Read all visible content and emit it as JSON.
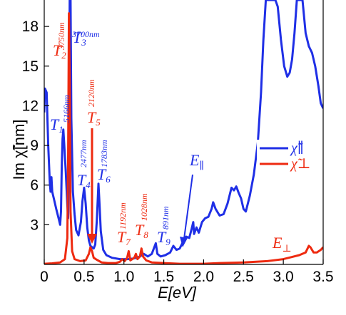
{
  "chart_data": {
    "type": "line",
    "xlabel": "E[eV]",
    "ylabel": "Im χ̃[nm]",
    "xlim": [
      0,
      3.5
    ],
    "ylim": [
      0,
      20
    ],
    "xticks": [
      {
        "v": 0,
        "label": "0"
      },
      {
        "v": 0.5,
        "label": "0.5"
      },
      {
        "v": 1,
        "label": "1.0"
      },
      {
        "v": 1.5,
        "label": "1.5"
      },
      {
        "v": 2,
        "label": "2.0"
      },
      {
        "v": 2.5,
        "label": "2.5"
      },
      {
        "v": 3,
        "label": "3.0"
      },
      {
        "v": 3.5,
        "label": "3.5"
      }
    ],
    "yticks": [
      {
        "v": 3,
        "label": "3"
      },
      {
        "v": 6,
        "label": "6"
      },
      {
        "v": 9,
        "label": "9"
      },
      {
        "v": 12,
        "label": "12"
      },
      {
        "v": 15,
        "label": "15"
      },
      {
        "v": 18,
        "label": "18"
      }
    ],
    "grid": false,
    "legend_position": "right",
    "series": [
      {
        "name": "χ̃∥",
        "color": "#1f2fe6",
        "points": [
          [
            0.0,
            11.5
          ],
          [
            0.01,
            13.3
          ],
          [
            0.03,
            13.0
          ],
          [
            0.05,
            9.0
          ],
          [
            0.07,
            6.2
          ],
          [
            0.08,
            5.5
          ],
          [
            0.09,
            6.6
          ],
          [
            0.1,
            5.5
          ],
          [
            0.12,
            5.0
          ],
          [
            0.15,
            4.2
          ],
          [
            0.18,
            3.5
          ],
          [
            0.2,
            3.0
          ],
          [
            0.21,
            4.0
          ],
          [
            0.22,
            7.5
          ],
          [
            0.23,
            9.5
          ],
          [
            0.24,
            10.2
          ],
          [
            0.25,
            9.2
          ],
          [
            0.27,
            7.0
          ],
          [
            0.29,
            4.5
          ],
          [
            0.3,
            3.5
          ],
          [
            0.31,
            8.0
          ],
          [
            0.32,
            20
          ],
          [
            0.33,
            20
          ],
          [
            0.34,
            11.0
          ],
          [
            0.36,
            5.5
          ],
          [
            0.38,
            3.8
          ],
          [
            0.4,
            2.6
          ],
          [
            0.43,
            2.2
          ],
          [
            0.46,
            3.2
          ],
          [
            0.48,
            4.8
          ],
          [
            0.5,
            5.8
          ],
          [
            0.52,
            4.6
          ],
          [
            0.54,
            2.8
          ],
          [
            0.56,
            1.8
          ],
          [
            0.58,
            1.4
          ],
          [
            0.6,
            1.3
          ],
          [
            0.62,
            1.2
          ],
          [
            0.64,
            1.5
          ],
          [
            0.66,
            3.3
          ],
          [
            0.68,
            6.1
          ],
          [
            0.69,
            5.0
          ],
          [
            0.71,
            2.5
          ],
          [
            0.74,
            1.1
          ],
          [
            0.78,
            0.7
          ],
          [
            0.85,
            0.5
          ],
          [
            0.95,
            0.4
          ],
          [
            1.05,
            0.4
          ],
          [
            1.12,
            0.45
          ],
          [
            1.16,
            0.5
          ],
          [
            1.2,
            0.6
          ],
          [
            1.25,
            0.8
          ],
          [
            1.3,
            0.6
          ],
          [
            1.35,
            0.8
          ],
          [
            1.4,
            1.6
          ],
          [
            1.42,
            0.8
          ],
          [
            1.46,
            0.6
          ],
          [
            1.52,
            0.7
          ],
          [
            1.58,
            0.9
          ],
          [
            1.62,
            1.4
          ],
          [
            1.66,
            1.1
          ],
          [
            1.7,
            1.2
          ],
          [
            1.74,
            1.7
          ],
          [
            1.78,
            2.1
          ],
          [
            1.82,
            2.0
          ],
          [
            1.85,
            2.7
          ],
          [
            1.87,
            3.2
          ],
          [
            1.88,
            2.3
          ],
          [
            1.91,
            2.8
          ],
          [
            1.94,
            2.4
          ],
          [
            1.98,
            3.2
          ],
          [
            2.02,
            3.5
          ],
          [
            2.06,
            3.6
          ],
          [
            2.1,
            4.2
          ],
          [
            2.12,
            4.7
          ],
          [
            2.15,
            4.2
          ],
          [
            2.2,
            3.7
          ],
          [
            2.25,
            3.8
          ],
          [
            2.3,
            4.6
          ],
          [
            2.35,
            5.8
          ],
          [
            2.38,
            5.6
          ],
          [
            2.41,
            5.9
          ],
          [
            2.44,
            5.4
          ],
          [
            2.47,
            5.0
          ],
          [
            2.5,
            4.2
          ],
          [
            2.53,
            4.0
          ],
          [
            2.58,
            5.2
          ],
          [
            2.63,
            6.8
          ],
          [
            2.68,
            9.2
          ],
          [
            2.72,
            13.0
          ],
          [
            2.75,
            17.0
          ],
          [
            2.78,
            20
          ],
          [
            2.9,
            20
          ],
          [
            2.93,
            19.5
          ],
          [
            2.97,
            17.0
          ],
          [
            3.01,
            15.0
          ],
          [
            3.05,
            14.2
          ],
          [
            3.08,
            14.5
          ],
          [
            3.11,
            15.5
          ],
          [
            3.14,
            17.5
          ],
          [
            3.17,
            20
          ],
          [
            3.24,
            20
          ],
          [
            3.28,
            17.5
          ],
          [
            3.32,
            16.5
          ],
          [
            3.36,
            16.0
          ],
          [
            3.4,
            15.0
          ],
          [
            3.44,
            13.5
          ],
          [
            3.47,
            12.2
          ],
          [
            3.5,
            11.8
          ]
        ]
      },
      {
        "name": "χ̃⊥",
        "color": "#ee2a10",
        "points": [
          [
            0.0,
            0.05
          ],
          [
            0.1,
            0.08
          ],
          [
            0.2,
            0.15
          ],
          [
            0.26,
            0.4
          ],
          [
            0.29,
            2.0
          ],
          [
            0.3,
            8.0
          ],
          [
            0.31,
            19.0
          ],
          [
            0.32,
            14.0
          ],
          [
            0.33,
            4.0
          ],
          [
            0.35,
            1.0
          ],
          [
            0.38,
            0.4
          ],
          [
            0.45,
            0.25
          ],
          [
            0.52,
            0.3
          ],
          [
            0.56,
            0.8
          ],
          [
            0.58,
            1.3
          ],
          [
            0.6,
            1.0
          ],
          [
            0.62,
            0.5
          ],
          [
            0.66,
            0.35
          ],
          [
            0.72,
            0.15
          ],
          [
            0.8,
            0.1
          ],
          [
            0.9,
            0.1
          ],
          [
            0.95,
            0.2
          ],
          [
            0.98,
            0.4
          ],
          [
            1.01,
            0.25
          ],
          [
            1.04,
            0.5
          ],
          [
            1.06,
            1.0
          ],
          [
            1.08,
            0.3
          ],
          [
            1.13,
            0.5
          ],
          [
            1.15,
            0.8
          ],
          [
            1.17,
            0.4
          ],
          [
            1.2,
            0.6
          ],
          [
            1.22,
            1.2
          ],
          [
            1.24,
            0.6
          ],
          [
            1.28,
            0.3
          ],
          [
            1.35,
            0.15
          ],
          [
            1.5,
            0.1
          ],
          [
            1.7,
            0.05
          ],
          [
            2.0,
            0.05
          ],
          [
            2.2,
            0.1
          ],
          [
            2.5,
            0.15
          ],
          [
            2.8,
            0.25
          ],
          [
            3.0,
            0.4
          ],
          [
            3.1,
            0.55
          ],
          [
            3.2,
            0.7
          ],
          [
            3.28,
            0.9
          ],
          [
            3.32,
            1.4
          ],
          [
            3.34,
            1.3
          ],
          [
            3.38,
            0.9
          ],
          [
            3.42,
            0.9
          ],
          [
            3.47,
            1.1
          ],
          [
            3.5,
            1.3
          ]
        ]
      }
    ],
    "annotations": [
      {
        "id": "t1",
        "label": "T",
        "sub": "1",
        "wavelength": "5166nm",
        "color": "#1f2fe6"
      },
      {
        "id": "t2",
        "label": "T",
        "sub": "2",
        "wavelength": "3750nm",
        "color": "#ee2a10"
      },
      {
        "id": "t3",
        "label": "T",
        "sub": "3",
        "wavelength": "3700nm",
        "color": "#1f2fe6"
      },
      {
        "id": "t4",
        "label": "T",
        "sub": "4",
        "wavelength": "2477nm",
        "color": "#1f2fe6"
      },
      {
        "id": "t5",
        "label": "T",
        "sub": "5",
        "wavelength": "2120nm",
        "color": "#ee2a10"
      },
      {
        "id": "t6",
        "label": "T",
        "sub": "6",
        "wavelength": "1783nm",
        "color": "#1f2fe6"
      },
      {
        "id": "t7",
        "label": "T",
        "sub": "7",
        "wavelength": "1192nm",
        "color": "#ee2a10"
      },
      {
        "id": "t8",
        "label": "T",
        "sub": "8",
        "wavelength": "1028nm",
        "color": "#ee2a10"
      },
      {
        "id": "t9",
        "label": "T",
        "sub": "9",
        "wavelength": "891nm",
        "color": "#1f2fe6"
      }
    ],
    "field_labels": {
      "parallel": {
        "text": "E",
        "sub": "∥",
        "color": "#1f2fe6"
      },
      "perp": {
        "text": "E",
        "sub": "⊥",
        "color": "#ee2a10"
      }
    }
  }
}
